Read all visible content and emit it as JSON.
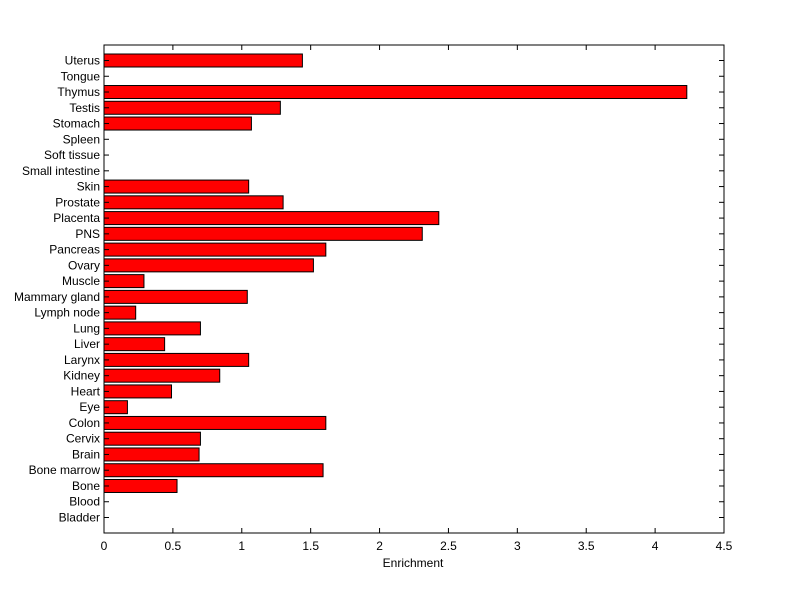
{
  "chart_data": {
    "type": "bar",
    "orientation": "horizontal",
    "title": "",
    "xlabel": "Enrichment",
    "ylabel": "",
    "xlim": [
      0,
      4.5
    ],
    "xticks": [
      0,
      0.5,
      1,
      1.5,
      2,
      2.5,
      3,
      3.5,
      4,
      4.5
    ],
    "xtick_labels": [
      "0",
      "0.5",
      "1",
      "1.5",
      "2",
      "2.5",
      "3",
      "3.5",
      "4",
      "4.5"
    ],
    "grid": false,
    "legend": "none",
    "bar_color": "#ff0000",
    "bar_edge_color": "#000000",
    "categories": [
      "Uterus",
      "Tongue",
      "Thymus",
      "Testis",
      "Stomach",
      "Spleen",
      "Soft tissue",
      "Small intestine",
      "Skin",
      "Prostate",
      "Placenta",
      "PNS",
      "Pancreas",
      "Ovary",
      "Muscle",
      "Mammary gland",
      "Lymph node",
      "Lung",
      "Liver",
      "Larynx",
      "Kidney",
      "Heart",
      "Eye",
      "Colon",
      "Cervix",
      "Brain",
      "Bone marrow",
      "Bone",
      "Blood",
      "Bladder"
    ],
    "values": [
      1.44,
      0,
      4.23,
      1.28,
      1.07,
      0,
      0,
      0,
      1.05,
      1.3,
      2.43,
      2.31,
      1.61,
      1.52,
      0.29,
      1.04,
      0.23,
      0.7,
      0.44,
      1.05,
      0.84,
      0.49,
      0.17,
      1.61,
      0.7,
      0.69,
      1.59,
      0.53,
      0,
      0
    ]
  }
}
